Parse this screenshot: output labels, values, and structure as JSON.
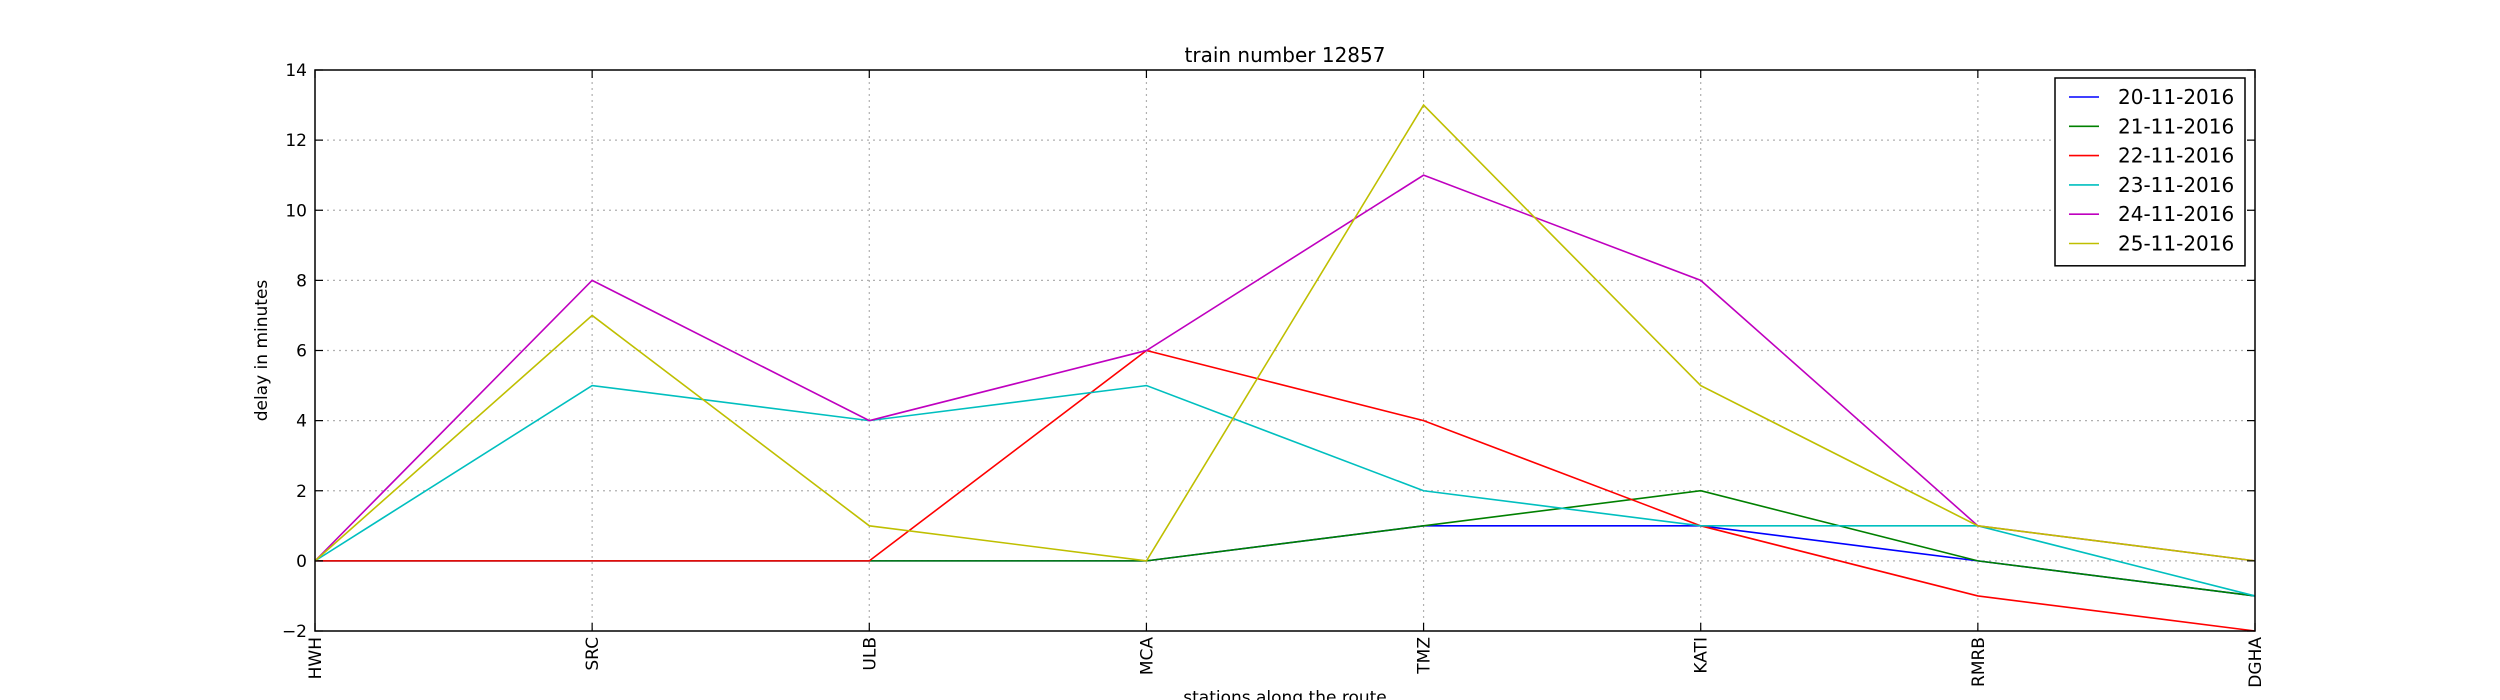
{
  "chart_data": {
    "type": "line",
    "title": "train number 12857",
    "xlabel": "stations along the route",
    "ylabel": "delay in minutes",
    "categories": [
      "HWH",
      "SRC",
      "ULB",
      "MCA",
      "TMZ",
      "KATI",
      "RMRB",
      "DGHA"
    ],
    "ylim": [
      -2,
      14
    ],
    "yticks": [
      -2,
      0,
      2,
      4,
      6,
      8,
      10,
      12,
      14
    ],
    "grid": true,
    "legend_position": "top-right",
    "series": [
      {
        "name": "20-11-2016",
        "color": "#0000ff",
        "values": [
          0,
          0,
          0,
          0,
          1,
          1,
          0,
          -1
        ]
      },
      {
        "name": "21-11-2016",
        "color": "#008000",
        "values": [
          0,
          0,
          0,
          0,
          1,
          2,
          0,
          -1
        ]
      },
      {
        "name": "22-11-2016",
        "color": "#ff0000",
        "values": [
          0,
          0,
          0,
          6,
          4,
          1,
          -1,
          -2
        ]
      },
      {
        "name": "23-11-2016",
        "color": "#00bfbf",
        "values": [
          0,
          5,
          4,
          5,
          2,
          1,
          1,
          -1
        ]
      },
      {
        "name": "24-11-2016",
        "color": "#bf00bf",
        "values": [
          0,
          8,
          4,
          6,
          11,
          8,
          1,
          0
        ]
      },
      {
        "name": "25-11-2016",
        "color": "#bfbf00",
        "values": [
          0,
          7,
          1,
          0,
          13,
          5,
          1,
          0
        ]
      }
    ]
  }
}
